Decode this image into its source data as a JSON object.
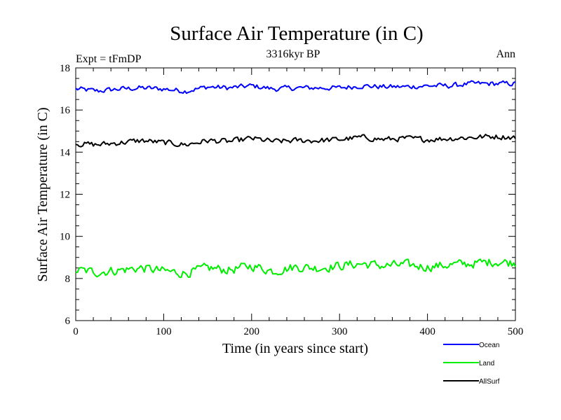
{
  "chart_data": {
    "type": "line",
    "title": "Surface Air Temperature (in C)",
    "subtitle": "3316kyr BP",
    "left_note": "Expt = tFmDP",
    "right_note": "Ann",
    "xlabel": "Time (in years since start)",
    "ylabel": "Surface Air Temperature (in C)",
    "xlim": [
      0,
      500
    ],
    "ylim": [
      6,
      18
    ],
    "x_ticks": [
      "0",
      "100",
      "200",
      "300",
      "400",
      "500"
    ],
    "y_ticks": [
      "6",
      "8",
      "10",
      "12",
      "14",
      "16",
      "18"
    ],
    "grid": false,
    "legend_position": "bottom-right",
    "series": [
      {
        "name": "Ocean",
        "color": "#0000ff",
        "x": [
          0,
          25,
          50,
          75,
          100,
          125,
          150,
          175,
          200,
          225,
          250,
          275,
          300,
          325,
          350,
          375,
          400,
          425,
          450,
          475,
          500
        ],
        "values": [
          17.0,
          16.9,
          17.0,
          17.05,
          17.0,
          16.9,
          17.1,
          17.05,
          17.15,
          17.0,
          17.05,
          17.05,
          17.05,
          17.15,
          17.1,
          17.1,
          17.15,
          17.15,
          17.25,
          17.25,
          17.25
        ]
      },
      {
        "name": "Land",
        "color": "#00ee00",
        "x": [
          0,
          25,
          50,
          75,
          100,
          125,
          150,
          175,
          200,
          225,
          250,
          275,
          300,
          325,
          350,
          375,
          400,
          425,
          450,
          475,
          500
        ],
        "values": [
          8.4,
          8.3,
          8.4,
          8.5,
          8.35,
          8.25,
          8.5,
          8.4,
          8.6,
          8.35,
          8.55,
          8.5,
          8.6,
          8.7,
          8.6,
          8.65,
          8.55,
          8.65,
          8.7,
          8.8,
          8.75
        ]
      },
      {
        "name": "AllSurf",
        "color": "#000000",
        "x": [
          0,
          25,
          50,
          75,
          100,
          125,
          150,
          175,
          200,
          225,
          250,
          275,
          300,
          325,
          350,
          375,
          400,
          425,
          450,
          475,
          500
        ],
        "values": [
          14.4,
          14.35,
          14.45,
          14.55,
          14.45,
          14.35,
          14.55,
          14.5,
          14.65,
          14.5,
          14.55,
          14.55,
          14.6,
          14.7,
          14.6,
          14.65,
          14.6,
          14.65,
          14.7,
          14.75,
          14.7
        ]
      }
    ]
  }
}
